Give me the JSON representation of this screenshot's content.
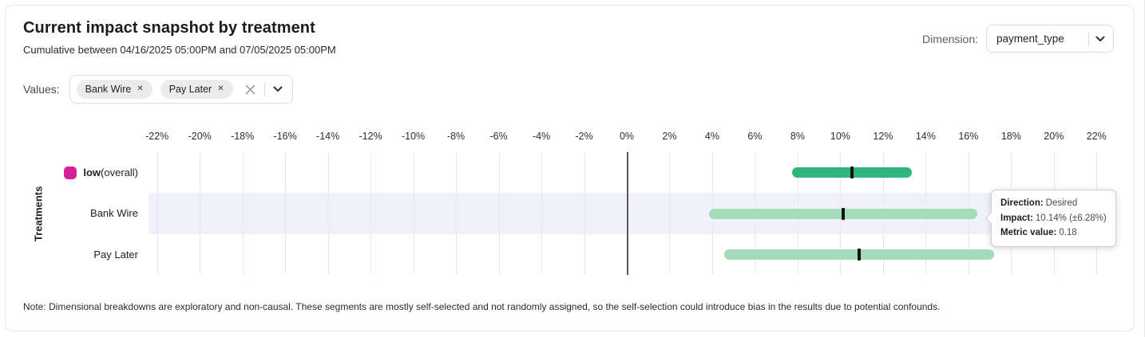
{
  "header": {
    "title": "Current impact snapshot by treatment",
    "subtitle": "Cumulative between 04/16/2025 05:00PM and 07/05/2025 05:00PM",
    "dimension_label": "Dimension:",
    "dimension_value": "payment_type"
  },
  "filters": {
    "values_label": "Values:",
    "chips": [
      {
        "label": "Bank Wire",
        "remove_icon": "x"
      },
      {
        "label": "Pay Later",
        "remove_icon": "x"
      }
    ]
  },
  "chart_data": {
    "type": "bar",
    "orientation": "horizontal",
    "title": "",
    "xlabel": "",
    "ylabel": "Treatments",
    "value_unit": "%",
    "xlim": [
      -22.4,
      22.4
    ],
    "ticks": [
      -22,
      -20,
      -18,
      -16,
      -14,
      -12,
      -10,
      -8,
      -6,
      -4,
      -2,
      0,
      2,
      4,
      6,
      8,
      10,
      12,
      14,
      16,
      18,
      20,
      22
    ],
    "tick_labels": [
      "-22%",
      "-20%",
      "-18%",
      "-16%",
      "-14%",
      "-12%",
      "-10%",
      "-8%",
      "-6%",
      "-4%",
      "-2%",
      "0%",
      "2%",
      "4%",
      "6%",
      "8%",
      "10%",
      "12%",
      "14%",
      "16%",
      "18%",
      "20%",
      "22%"
    ],
    "grid": true,
    "zero_line": 0,
    "zero_line_color": "#5a5a5a",
    "gridline_color": "#e9e9ec",
    "highlight_band_color": "#f1f1fb",
    "marker_color": "#111111",
    "rows": [
      {
        "label": "low (overall)",
        "label_parts": {
          "bold": "low",
          "normal": " (overall)"
        },
        "legend_swatch_color": "#d6219c",
        "bar_color": "#31b57e",
        "impact_pct": 10.55,
        "ci_low_pct": 7.75,
        "ci_high_pct": 13.35,
        "highlighted": false
      },
      {
        "label": "Bank Wire",
        "bar_color": "#a4dcb9",
        "impact_pct": 10.14,
        "ci_low_pct": 3.86,
        "ci_high_pct": 16.42,
        "highlighted": true,
        "direction": "Desired",
        "metric_value": 0.18
      },
      {
        "label": "Pay Later",
        "bar_color": "#a4dcb9",
        "impact_pct": 10.9,
        "ci_low_pct": 4.55,
        "ci_high_pct": 17.2,
        "highlighted": false
      }
    ]
  },
  "tooltip": {
    "lines": [
      {
        "label": "Direction:",
        "value": "Desired"
      },
      {
        "label": "Impact:",
        "value": "10.14% (±6.28%)"
      },
      {
        "label": "Metric value:",
        "value": "0.18"
      }
    ]
  },
  "note": "Note: Dimensional breakdowns are exploratory and non-causal. These segments are mostly self-selected and not randomly assigned, so the self-selection could introduce bias in the results due to potential confounds."
}
